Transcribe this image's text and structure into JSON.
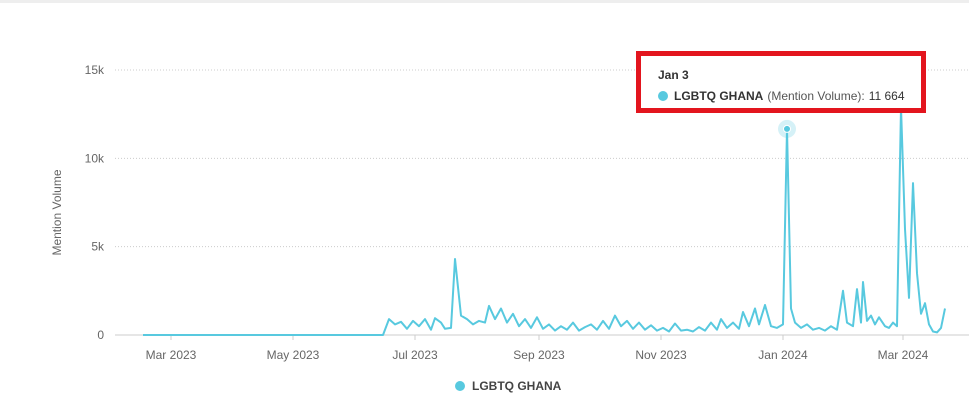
{
  "chart_data": {
    "type": "line",
    "ylabel": "Mention Volume",
    "xlabel": "",
    "ylim": [
      0,
      15000
    ],
    "y_ticks": [
      {
        "value": 0,
        "label": "0"
      },
      {
        "value": 5000,
        "label": "5k"
      },
      {
        "value": 10000,
        "label": "10k"
      },
      {
        "value": 15000,
        "label": "15k"
      }
    ],
    "x_ticks": [
      "Mar 2023",
      "May 2023",
      "Jul 2023",
      "Sep 2023",
      "Nov 2023",
      "Jan 2024",
      "Mar 2024"
    ],
    "grid": "horizontal dotted",
    "legend_position": "bottom-center",
    "series": [
      {
        "name": "LGBTQ GHANA",
        "color": "#58c9df",
        "points": [
          [
            "2023-02-15",
            0
          ],
          [
            "2023-06-15",
            0
          ],
          [
            "2023-06-18",
            900
          ],
          [
            "2023-06-21",
            600
          ],
          [
            "2023-06-24",
            750
          ],
          [
            "2023-06-27",
            350
          ],
          [
            "2023-06-30",
            800
          ],
          [
            "2023-07-03",
            500
          ],
          [
            "2023-07-06",
            900
          ],
          [
            "2023-07-09",
            300
          ],
          [
            "2023-07-11",
            950
          ],
          [
            "2023-07-14",
            700
          ],
          [
            "2023-07-16",
            350
          ],
          [
            "2023-07-19",
            400
          ],
          [
            "2023-07-21",
            4300
          ],
          [
            "2023-07-24",
            1100
          ],
          [
            "2023-07-27",
            900
          ],
          [
            "2023-07-30",
            600
          ],
          [
            "2023-08-02",
            800
          ],
          [
            "2023-08-05",
            700
          ],
          [
            "2023-08-07",
            1650
          ],
          [
            "2023-08-10",
            900
          ],
          [
            "2023-08-13",
            1500
          ],
          [
            "2023-08-16",
            700
          ],
          [
            "2023-08-19",
            1200
          ],
          [
            "2023-08-22",
            500
          ],
          [
            "2023-08-25",
            900
          ],
          [
            "2023-08-28",
            400
          ],
          [
            "2023-08-31",
            1000
          ],
          [
            "2023-09-03",
            350
          ],
          [
            "2023-09-06",
            600
          ],
          [
            "2023-09-09",
            250
          ],
          [
            "2023-09-12",
            500
          ],
          [
            "2023-09-15",
            300
          ],
          [
            "2023-09-18",
            700
          ],
          [
            "2023-09-21",
            250
          ],
          [
            "2023-09-24",
            450
          ],
          [
            "2023-09-27",
            600
          ],
          [
            "2023-09-30",
            300
          ],
          [
            "2023-10-03",
            800
          ],
          [
            "2023-10-06",
            350
          ],
          [
            "2023-10-09",
            1100
          ],
          [
            "2023-10-12",
            500
          ],
          [
            "2023-10-15",
            800
          ],
          [
            "2023-10-18",
            350
          ],
          [
            "2023-10-21",
            700
          ],
          [
            "2023-10-24",
            300
          ],
          [
            "2023-10-27",
            550
          ],
          [
            "2023-10-30",
            250
          ],
          [
            "2023-11-02",
            400
          ],
          [
            "2023-11-05",
            200
          ],
          [
            "2023-11-08",
            650
          ],
          [
            "2023-11-11",
            250
          ],
          [
            "2023-11-14",
            300
          ],
          [
            "2023-11-17",
            200
          ],
          [
            "2023-11-20",
            450
          ],
          [
            "2023-11-23",
            250
          ],
          [
            "2023-11-26",
            700
          ],
          [
            "2023-11-29",
            300
          ],
          [
            "2023-12-01",
            900
          ],
          [
            "2023-12-04",
            400
          ],
          [
            "2023-12-07",
            700
          ],
          [
            "2023-12-10",
            350
          ],
          [
            "2023-12-12",
            1300
          ],
          [
            "2023-12-15",
            500
          ],
          [
            "2023-12-18",
            1500
          ],
          [
            "2023-12-20",
            600
          ],
          [
            "2023-12-23",
            1700
          ],
          [
            "2023-12-26",
            500
          ],
          [
            "2023-12-29",
            400
          ],
          [
            "2024-01-01",
            600
          ],
          [
            "2024-01-03",
            11664
          ],
          [
            "2024-01-05",
            1500
          ],
          [
            "2024-01-07",
            700
          ],
          [
            "2024-01-10",
            400
          ],
          [
            "2024-01-13",
            600
          ],
          [
            "2024-01-16",
            300
          ],
          [
            "2024-01-19",
            400
          ],
          [
            "2024-01-22",
            250
          ],
          [
            "2024-01-25",
            500
          ],
          [
            "2024-01-28",
            300
          ],
          [
            "2024-01-31",
            2500
          ],
          [
            "2024-02-02",
            700
          ],
          [
            "2024-02-05",
            500
          ],
          [
            "2024-02-07",
            2600
          ],
          [
            "2024-02-09",
            700
          ],
          [
            "2024-02-10",
            3000
          ],
          [
            "2024-02-12",
            800
          ],
          [
            "2024-02-14",
            1100
          ],
          [
            "2024-02-16",
            600
          ],
          [
            "2024-02-18",
            1000
          ],
          [
            "2024-02-21",
            500
          ],
          [
            "2024-02-23",
            400
          ],
          [
            "2024-02-25",
            700
          ],
          [
            "2024-02-27",
            500
          ],
          [
            "2024-02-29",
            12900
          ],
          [
            "2024-03-02",
            6000
          ],
          [
            "2024-03-04",
            2100
          ],
          [
            "2024-03-06",
            8600
          ],
          [
            "2024-03-08",
            3500
          ],
          [
            "2024-03-10",
            1200
          ],
          [
            "2024-03-12",
            1800
          ],
          [
            "2024-03-14",
            600
          ],
          [
            "2024-03-16",
            200
          ],
          [
            "2024-03-18",
            150
          ],
          [
            "2024-03-20",
            400
          ],
          [
            "2024-03-22",
            1500
          ]
        ]
      }
    ],
    "highlight": {
      "date": "2024-01-03",
      "value": 11664
    }
  },
  "tooltip": {
    "date": "Jan 3",
    "series": "LGBTQ GHANA",
    "metric": "(Mention Volume):",
    "value": "11 664"
  },
  "legend": {
    "label": "LGBTQ GHANA"
  }
}
